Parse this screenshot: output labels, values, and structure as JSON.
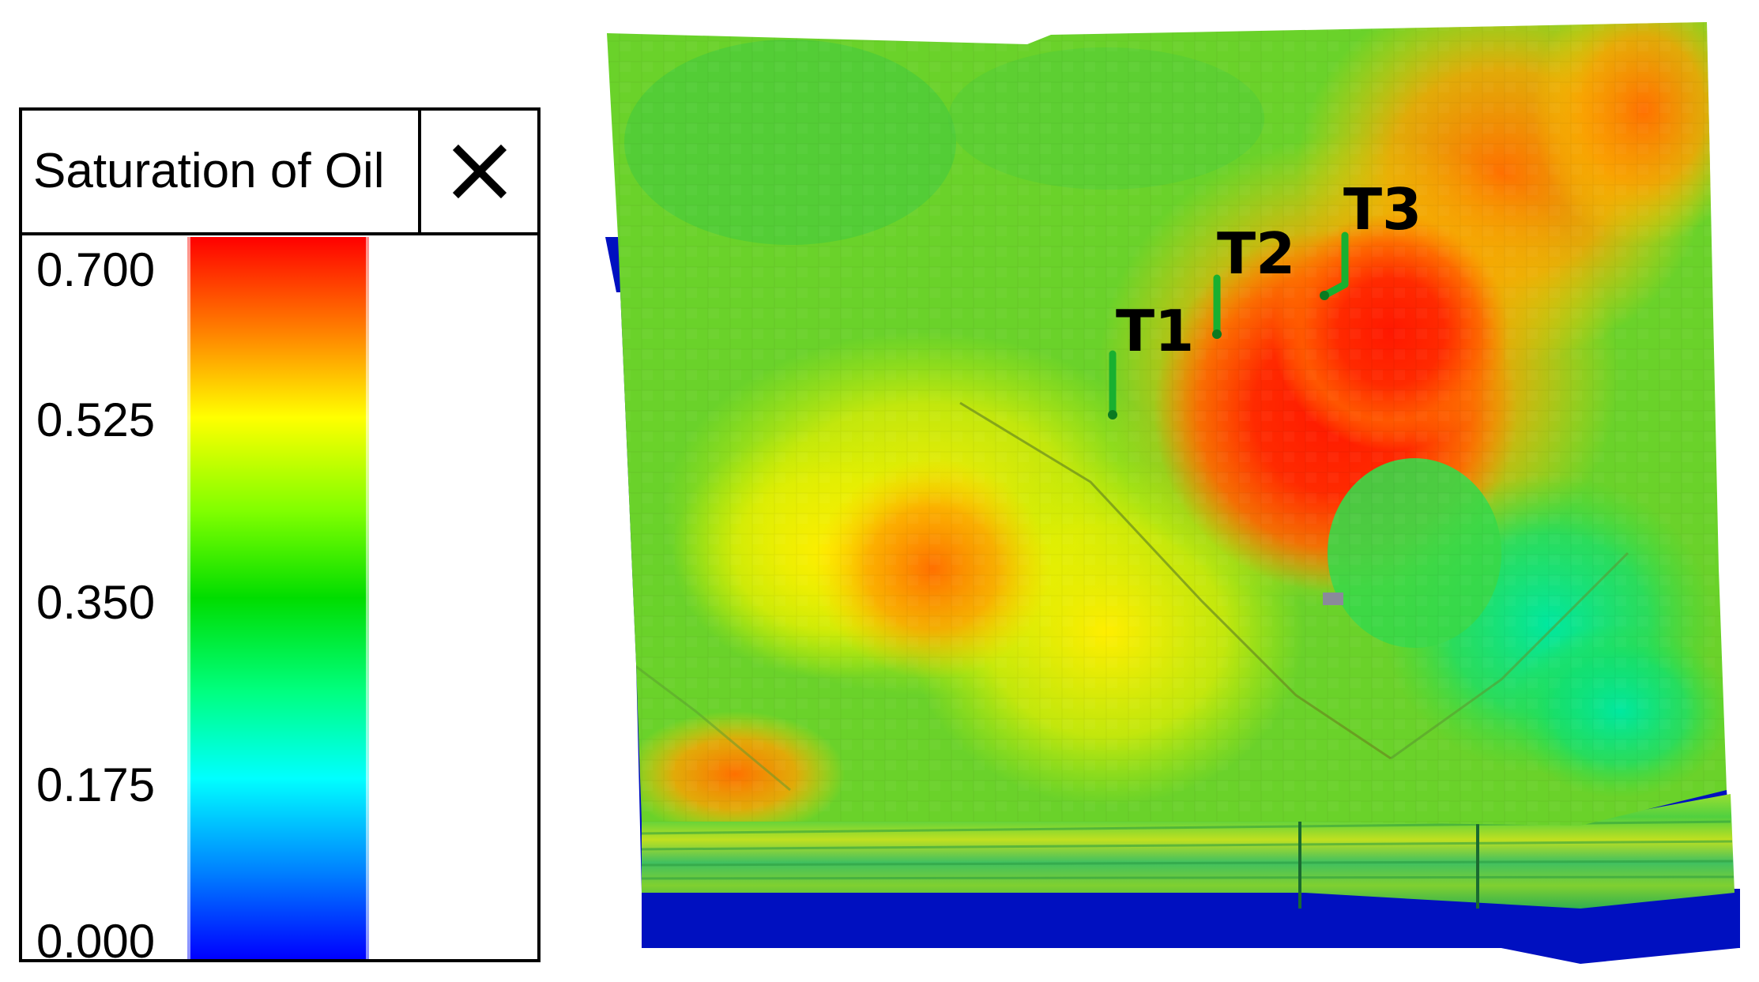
{
  "legend": {
    "title": "Saturation of Oil",
    "close_icon": "close-icon",
    "ticks": [
      "0.700",
      "0.525",
      "0.350",
      "0.175",
      "0.000"
    ],
    "colormap": [
      "#0000ff",
      "#00ffff",
      "#00dd00",
      "#ffff00",
      "#ff0000"
    ]
  },
  "wells": {
    "t1": "T1",
    "t2": "T2",
    "t3": "T3"
  }
}
